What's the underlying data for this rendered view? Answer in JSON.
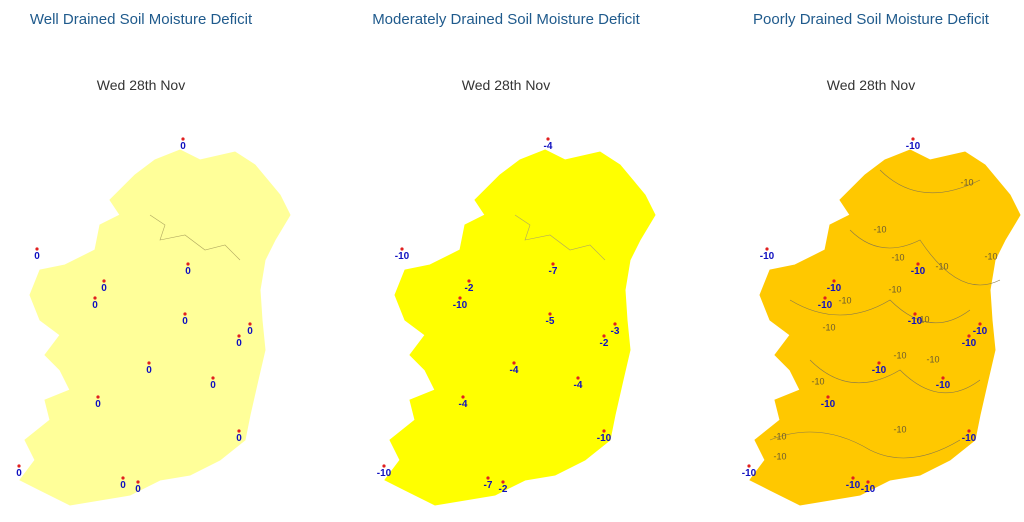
{
  "panels": [
    {
      "title": "Well Drained Soil Moisture Deficit",
      "date": "Wed 28th Nov",
      "stations": [
        0,
        0,
        0,
        0,
        0,
        0,
        0,
        0,
        0,
        0,
        0,
        0,
        0,
        0,
        0
      ]
    },
    {
      "title": "Moderately Drained Soil Moisture Deficit",
      "date": "Wed 28th Nov",
      "stations": [
        -4,
        -10,
        -7,
        -2,
        -10,
        -5,
        -3,
        -2,
        -4,
        -4,
        -4,
        -10,
        -10,
        -7,
        -2
      ]
    },
    {
      "title": "Poorly Drained Soil Moisture Deficit",
      "date": "Wed 28th Nov",
      "stations": [
        -10,
        -10,
        -10,
        -10,
        -10,
        -10,
        -10,
        -10,
        -10,
        -10,
        -10,
        -10,
        -10,
        -10,
        -10
      ],
      "contour_labels": [
        -10,
        -10,
        -10,
        -10,
        -10,
        -10,
        -10,
        -10,
        -10,
        -10,
        -10,
        -10,
        -10,
        -10,
        -10
      ]
    }
  ]
}
